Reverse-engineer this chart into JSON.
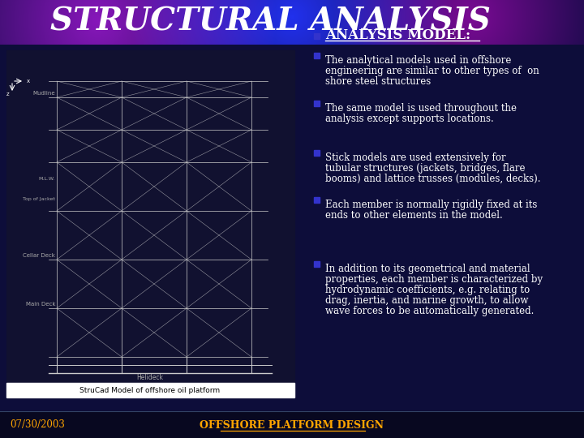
{
  "title": "STRUCTURAL ANALYSIS",
  "title_color": "#ffffff",
  "title_fontsize": 28,
  "header_section_heading": "ANALYSIS MODEL:",
  "bullet_points": [
    "The analytical models used in offshore\nengineering are similar to other types of  on\nshore steel structures",
    "The same model is used throughout the\nanalysis except supports locations.",
    "Stick models are used extensively for\ntubular structures (jackets, bridges, flare\nbooms) and lattice trusses (modules, decks).",
    "Each member is normally rigidly fixed at its\nends to other elements in the model.",
    "In addition to its geometrical and material\nproperties, each member is characterized by\nhydrodynamic coefficients, e.g. relating to\ndrag, inertia, and marine growth, to allow\nwave forces to be automatically generated."
  ],
  "footer_left": "07/30/2003",
  "footer_center": "OFFSHORE PLATFORM DESIGN",
  "footer_color": "#FFA500",
  "text_color": "#ffffff",
  "bullet_color": "#3333cc",
  "heading_color": "#ffffff",
  "image_caption": "StruCad Model of offshore oil platform",
  "header_bg_colors": [
    "#6633aa",
    "#4466cc",
    "#220066"
  ],
  "body_bg_color": "#0d0d3a",
  "footer_bg_color": "#080820"
}
